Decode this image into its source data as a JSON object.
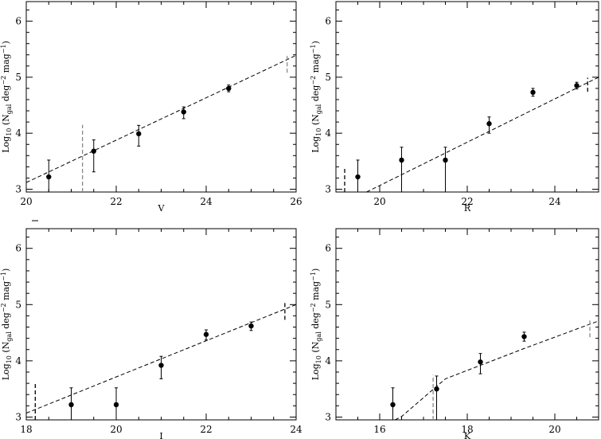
{
  "chart_data": [
    {
      "type": "scatter",
      "panel": "top-left",
      "xlabel": "V",
      "ylabel_main": "Log",
      "ylabel_sub": "10",
      "ylabel_mid": " (N",
      "ylabel_sub2": "gal",
      "ylabel_tail": " deg",
      "ylabel_sup": "−2",
      "ylabel_tail2": " mag",
      "ylabel_sup2": "−1",
      "ylabel_end": ")",
      "xlim": [
        20,
        26
      ],
      "ylim": [
        2.95,
        6.35
      ],
      "xticks_major": [
        20,
        22,
        24,
        26
      ],
      "xtick_labels": [
        "20",
        "22",
        "24",
        "26"
      ],
      "yticks_major": [
        3,
        4,
        5,
        6
      ],
      "ytick_labels": [
        "3",
        "4",
        "5",
        "6"
      ],
      "points": [
        {
          "x": 20.5,
          "y": 3.22,
          "lo": 2.95,
          "hi": 3.52
        },
        {
          "x": 21.5,
          "y": 3.68,
          "lo": 3.31,
          "hi": 3.88
        },
        {
          "x": 22.5,
          "y": 3.99,
          "lo": 3.77,
          "hi": 4.14
        },
        {
          "x": 23.5,
          "y": 4.38,
          "lo": 4.26,
          "hi": 4.47
        },
        {
          "x": 24.5,
          "y": 4.8,
          "lo": 4.74,
          "hi": 4.86
        }
      ],
      "model_line": [
        [
          20,
          3.12
        ],
        [
          26,
          5.39
        ]
      ],
      "limit_lines": [
        {
          "x": 21.25,
          "ylo": 2.95,
          "yhi": 4.15,
          "color": "#888888"
        },
        {
          "x": 25.8,
          "ylo": 5.08,
          "yhi": 5.42,
          "color": "#888888"
        }
      ]
    },
    {
      "type": "scatter",
      "panel": "top-right",
      "xlabel": "R",
      "ylabel_main": "Log",
      "ylabel_sub": "10",
      "ylabel_mid": " (N",
      "ylabel_sub2": "gal",
      "ylabel_tail": " deg",
      "ylabel_sup": "−2",
      "ylabel_tail2": " mag",
      "ylabel_sup2": "−1",
      "ylabel_end": ")",
      "xlim": [
        19,
        25
      ],
      "ylim": [
        2.95,
        6.35
      ],
      "xticks_major": [
        20,
        22,
        24
      ],
      "xtick_labels": [
        "20",
        "22",
        "24"
      ],
      "yticks_major": [
        3,
        4,
        5,
        6
      ],
      "ytick_labels": [
        "3",
        "4",
        "5",
        "6"
      ],
      "points": [
        {
          "x": 19.5,
          "y": 3.22,
          "lo": 2.95,
          "hi": 3.52
        },
        {
          "x": 20.5,
          "y": 3.52,
          "lo": 2.95,
          "hi": 3.75
        },
        {
          "x": 21.5,
          "y": 3.52,
          "lo": 2.95,
          "hi": 3.75
        },
        {
          "x": 22.5,
          "y": 4.17,
          "lo": 4.0,
          "hi": 4.29
        },
        {
          "x": 23.5,
          "y": 4.73,
          "lo": 4.66,
          "hi": 4.8
        },
        {
          "x": 24.5,
          "y": 4.85,
          "lo": 4.79,
          "hi": 4.91
        }
      ],
      "model_line": [
        [
          19.7,
          2.95
        ],
        [
          25,
          5.0
        ]
      ],
      "limit_lines": [
        {
          "x": 19.2,
          "ylo": 2.95,
          "yhi": 3.4,
          "color": "#000000"
        },
        {
          "x": 24.75,
          "ylo": 4.74,
          "yhi": 4.99,
          "color": "#000000"
        }
      ]
    },
    {
      "type": "scatter",
      "panel": "bottom-left",
      "xlabel": "I",
      "ylabel_main": "Log",
      "ylabel_sub": "10",
      "ylabel_mid": " (N",
      "ylabel_sub2": "gal",
      "ylabel_tail": " deg",
      "ylabel_sup": "−2",
      "ylabel_tail2": " mag",
      "ylabel_sup2": "−1",
      "ylabel_end": ")",
      "xlim": [
        18,
        24
      ],
      "ylim": [
        2.95,
        6.35
      ],
      "xticks_major": [
        18,
        20,
        22,
        24
      ],
      "xtick_labels": [
        "18",
        "20",
        "22",
        "24"
      ],
      "yticks_major": [
        3,
        4,
        5,
        6
      ],
      "ytick_labels": [
        "3",
        "4",
        "5",
        "6"
      ],
      "points": [
        {
          "x": 19.0,
          "y": 3.22,
          "lo": 2.95,
          "hi": 3.52
        },
        {
          "x": 20.0,
          "y": 3.22,
          "lo": 2.95,
          "hi": 3.52
        },
        {
          "x": 21.0,
          "y": 3.92,
          "lo": 3.68,
          "hi": 4.08
        },
        {
          "x": 22.0,
          "y": 4.47,
          "lo": 4.37,
          "hi": 4.55
        },
        {
          "x": 23.0,
          "y": 4.62,
          "lo": 4.54,
          "hi": 4.69
        }
      ],
      "model_line": [
        [
          18,
          3.07
        ],
        [
          24,
          5.0
        ]
      ],
      "limit_lines": [
        {
          "x": 18.2,
          "ylo": 2.95,
          "yhi": 3.6,
          "color": "#000000"
        },
        {
          "x": 23.75,
          "ylo": 4.73,
          "yhi": 5.05,
          "color": "#000000"
        }
      ]
    },
    {
      "type": "scatter",
      "panel": "bottom-right",
      "xlabel": "K",
      "ylabel_main": "Log",
      "ylabel_sub": "10",
      "ylabel_mid": " (N",
      "ylabel_sub2": "gal",
      "ylabel_tail": " deg",
      "ylabel_sup": "−2",
      "ylabel_tail2": " mag",
      "ylabel_sup2": "−1",
      "ylabel_end": ")",
      "xlim": [
        15,
        21
      ],
      "ylim": [
        2.95,
        6.35
      ],
      "xticks_major": [
        16,
        18,
        20
      ],
      "xtick_labels": [
        "16",
        "18",
        "20"
      ],
      "yticks_major": [
        3,
        4,
        5,
        6
      ],
      "ytick_labels": [
        "3",
        "4",
        "5",
        "6"
      ],
      "points": [
        {
          "x": 16.3,
          "y": 3.22,
          "lo": 2.95,
          "hi": 3.52
        },
        {
          "x": 17.3,
          "y": 3.5,
          "lo": 2.95,
          "hi": 3.73
        },
        {
          "x": 18.3,
          "y": 3.98,
          "lo": 3.77,
          "hi": 4.13
        },
        {
          "x": 19.3,
          "y": 4.43,
          "lo": 4.35,
          "hi": 4.51
        }
      ],
      "model_line": [
        [
          16.35,
          2.95
        ],
        [
          16.5,
          3.01
        ],
        [
          17.5,
          3.68
        ],
        [
          19.3,
          4.22
        ],
        [
          21,
          4.71
        ]
      ],
      "limit_lines": [
        {
          "x": 17.22,
          "ylo": 2.95,
          "yhi": 3.75,
          "color": "#888888"
        },
        {
          "x": 20.8,
          "ylo": 4.42,
          "yhi": 4.76,
          "color": "#888888"
        }
      ]
    }
  ]
}
